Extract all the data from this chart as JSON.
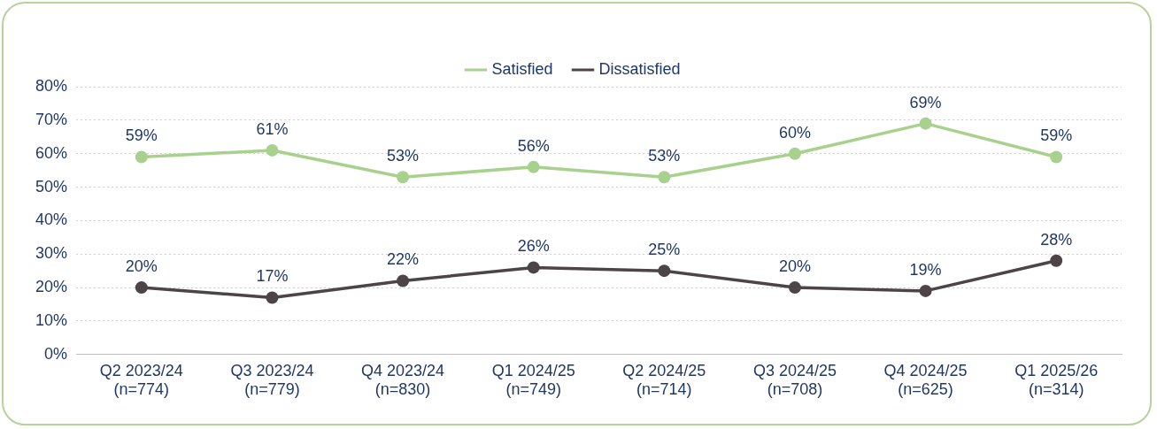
{
  "chart_data": {
    "type": "line",
    "categories": [
      "Q2 2023/24\n(n=774)",
      "Q3 2023/24\n(n=779)",
      "Q4 2023/24\n(n=830)",
      "Q1 2024/25\n(n=749)",
      "Q2 2024/25\n(n=714)",
      "Q3 2024/25\n(n=708)",
      "Q4 2024/25\n(n=625)",
      "Q1 2025/26\n(n=314)"
    ],
    "series": [
      {
        "name": "Satisfied",
        "color": "#a9d18e",
        "values": [
          59,
          61,
          53,
          56,
          53,
          60,
          69,
          59
        ],
        "value_labels": [
          "59%",
          "61%",
          "53%",
          "56%",
          "53%",
          "60%",
          "69%",
          "59%"
        ]
      },
      {
        "name": "Dissatisfied",
        "color": "#4d4447",
        "values": [
          20,
          17,
          22,
          26,
          25,
          20,
          19,
          28
        ],
        "value_labels": [
          "20%",
          "17%",
          "22%",
          "26%",
          "25%",
          "20%",
          "19%",
          "28%"
        ]
      }
    ],
    "ylim": [
      0,
      80
    ],
    "yticks": [
      {
        "value": 0,
        "label": "0%"
      },
      {
        "value": 10,
        "label": "10%"
      },
      {
        "value": 20,
        "label": "20%"
      },
      {
        "value": 30,
        "label": "30%"
      },
      {
        "value": 40,
        "label": "40%"
      },
      {
        "value": 50,
        "label": "50%"
      },
      {
        "value": 60,
        "label": "60%"
      },
      {
        "value": 70,
        "label": "70%"
      },
      {
        "value": 80,
        "label": "80%"
      }
    ],
    "grid": "y",
    "legend": "top",
    "marker": "circle",
    "line_style": "solid"
  }
}
